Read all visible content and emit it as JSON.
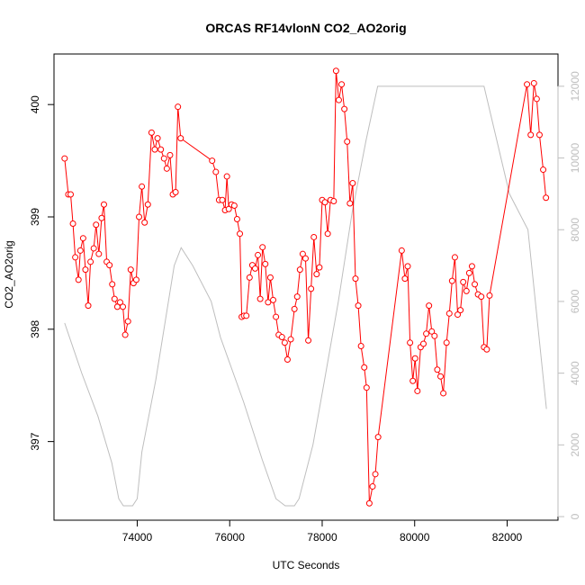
{
  "chart_data": {
    "type": "line",
    "title": "ORCAS RF14vlonN CO2_AO2orig",
    "xlabel": "UTC Seconds",
    "ylabel": "CO2_AO2orig",
    "xlim": [
      72200,
      83100
    ],
    "ylim": [
      396.3,
      400.45
    ],
    "y2lim": [
      -100,
      12900
    ],
    "x_ticks": [
      74000,
      76000,
      78000,
      80000,
      82000
    ],
    "y_ticks": [
      397,
      398,
      399,
      400
    ],
    "y2_ticks": [
      0,
      2000,
      4000,
      6000,
      8000,
      10000,
      12000
    ],
    "grid": false,
    "colors": {
      "primary": "#ff0000",
      "secondary": "#bebebe"
    },
    "series": [
      {
        "axis": "left",
        "style": "line-points",
        "color": "#ff0000",
        "points": [
          [
            72430,
            399.52
          ],
          [
            72510,
            399.2
          ],
          [
            72560,
            399.2
          ],
          [
            72610,
            398.94
          ],
          [
            72660,
            398.64
          ],
          [
            72730,
            398.44
          ],
          [
            72770,
            398.7
          ],
          [
            72830,
            398.81
          ],
          [
            72880,
            398.53
          ],
          [
            72940,
            398.21
          ],
          [
            72990,
            398.6
          ],
          [
            73060,
            398.72
          ],
          [
            73110,
            398.93
          ],
          [
            73170,
            398.67
          ],
          [
            73230,
            398.99
          ],
          [
            73280,
            399.11
          ],
          [
            73340,
            398.6
          ],
          [
            73400,
            398.57
          ],
          [
            73460,
            398.4
          ],
          [
            73510,
            398.27
          ],
          [
            73570,
            398.2
          ],
          [
            73630,
            398.24
          ],
          [
            73690,
            398.2
          ],
          [
            73740,
            397.95
          ],
          [
            73800,
            398.07
          ],
          [
            73860,
            398.53
          ],
          [
            73920,
            398.41
          ],
          [
            73980,
            398.44
          ],
          [
            74040,
            399.0
          ],
          [
            74100,
            399.27
          ],
          [
            74160,
            398.95
          ],
          [
            74230,
            399.11
          ],
          [
            74310,
            399.75
          ],
          [
            74380,
            399.6
          ],
          [
            74440,
            399.7
          ],
          [
            74510,
            399.6
          ],
          [
            74580,
            399.52
          ],
          [
            74640,
            399.43
          ],
          [
            74710,
            399.55
          ],
          [
            74770,
            399.2
          ],
          [
            74830,
            399.22
          ],
          [
            74880,
            399.98
          ],
          [
            74940,
            399.7
          ],
          [
            75620,
            399.5
          ],
          [
            75700,
            399.4
          ],
          [
            75770,
            399.15
          ],
          [
            75840,
            399.15
          ],
          [
            75900,
            399.06
          ],
          [
            75940,
            399.36
          ],
          [
            75980,
            399.07
          ],
          [
            76040,
            399.11
          ],
          [
            76100,
            399.1
          ],
          [
            76160,
            398.98
          ],
          [
            76220,
            398.85
          ],
          [
            76260,
            398.11
          ],
          [
            76310,
            398.12
          ],
          [
            76360,
            398.12
          ],
          [
            76430,
            398.46
          ],
          [
            76490,
            398.57
          ],
          [
            76550,
            398.54
          ],
          [
            76610,
            398.66
          ],
          [
            76660,
            398.27
          ],
          [
            76710,
            398.73
          ],
          [
            76770,
            398.58
          ],
          [
            76830,
            398.24
          ],
          [
            76880,
            398.46
          ],
          [
            76940,
            398.26
          ],
          [
            77000,
            398.11
          ],
          [
            77060,
            397.95
          ],
          [
            77130,
            397.93
          ],
          [
            77190,
            397.88
          ],
          [
            77250,
            397.73
          ],
          [
            77320,
            397.91
          ],
          [
            77400,
            398.18
          ],
          [
            77460,
            398.29
          ],
          [
            77520,
            398.53
          ],
          [
            77580,
            398.67
          ],
          [
            77640,
            398.63
          ],
          [
            77700,
            397.9
          ],
          [
            77760,
            398.36
          ],
          [
            77820,
            398.82
          ],
          [
            77880,
            398.49
          ],
          [
            77940,
            398.55
          ],
          [
            78000,
            399.15
          ],
          [
            78060,
            399.13
          ],
          [
            78120,
            398.85
          ],
          [
            78180,
            399.15
          ],
          [
            78250,
            399.14
          ],
          [
            78300,
            400.3
          ],
          [
            78360,
            400.04
          ],
          [
            78420,
            400.18
          ],
          [
            78480,
            399.96
          ],
          [
            78540,
            399.67
          ],
          [
            78600,
            399.12
          ],
          [
            78660,
            399.3
          ],
          [
            78720,
            398.45
          ],
          [
            78780,
            398.21
          ],
          [
            78840,
            397.85
          ],
          [
            78910,
            397.66
          ],
          [
            78960,
            397.48
          ],
          [
            79020,
            396.45
          ],
          [
            79090,
            396.6
          ],
          [
            79150,
            396.71
          ],
          [
            79210,
            397.04
          ],
          [
            79720,
            398.7
          ],
          [
            79790,
            398.45
          ],
          [
            79850,
            398.56
          ],
          [
            79900,
            397.88
          ],
          [
            79960,
            397.54
          ],
          [
            80010,
            397.74
          ],
          [
            80060,
            397.45
          ],
          [
            80130,
            397.84
          ],
          [
            80190,
            397.87
          ],
          [
            80250,
            397.96
          ],
          [
            80310,
            398.21
          ],
          [
            80370,
            397.98
          ],
          [
            80430,
            397.94
          ],
          [
            80490,
            397.64
          ],
          [
            80560,
            397.58
          ],
          [
            80620,
            397.43
          ],
          [
            80690,
            397.88
          ],
          [
            80750,
            398.14
          ],
          [
            80810,
            398.43
          ],
          [
            80870,
            398.64
          ],
          [
            80930,
            398.13
          ],
          [
            80990,
            398.17
          ],
          [
            81050,
            398.42
          ],
          [
            81120,
            398.34
          ],
          [
            81180,
            398.5
          ],
          [
            81240,
            398.56
          ],
          [
            81300,
            398.4
          ],
          [
            81370,
            398.31
          ],
          [
            81440,
            398.29
          ],
          [
            81500,
            397.84
          ],
          [
            81560,
            397.82
          ],
          [
            81620,
            398.3
          ],
          [
            82430,
            400.18
          ],
          [
            82510,
            399.73
          ],
          [
            82580,
            400.19
          ],
          [
            82640,
            400.05
          ],
          [
            82700,
            399.73
          ],
          [
            82780,
            399.42
          ],
          [
            82840,
            399.17
          ]
        ]
      },
      {
        "axis": "right",
        "style": "line",
        "color": "#bebebe",
        "points": [
          [
            72430,
            5400
          ],
          [
            72800,
            4000
          ],
          [
            73150,
            2800
          ],
          [
            73450,
            1500
          ],
          [
            73600,
            500
          ],
          [
            73700,
            300
          ],
          [
            73900,
            300
          ],
          [
            74000,
            500
          ],
          [
            74100,
            1800
          ],
          [
            74400,
            3800
          ],
          [
            74800,
            7000
          ],
          [
            74950,
            7500
          ],
          [
            75200,
            7000
          ],
          [
            75600,
            6000
          ],
          [
            75800,
            5000
          ],
          [
            76300,
            3200
          ],
          [
            76700,
            1600
          ],
          [
            77000,
            500
          ],
          [
            77200,
            300
          ],
          [
            77400,
            300
          ],
          [
            77500,
            500
          ],
          [
            77800,
            2000
          ],
          [
            78050,
            3800
          ],
          [
            78350,
            6000
          ],
          [
            78650,
            8500
          ],
          [
            78950,
            10500
          ],
          [
            79200,
            12000
          ],
          [
            80200,
            12000
          ],
          [
            81500,
            12000
          ],
          [
            82050,
            9000
          ],
          [
            82450,
            8000
          ],
          [
            82850,
            3000
          ]
        ]
      }
    ]
  }
}
